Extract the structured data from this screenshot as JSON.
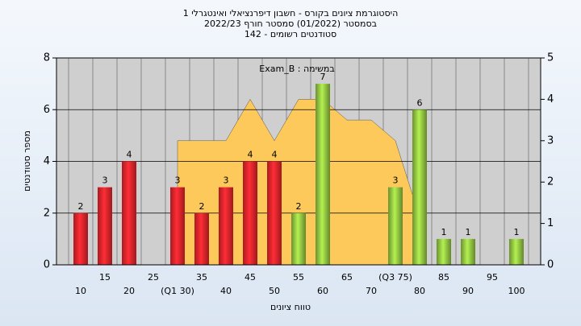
{
  "chart_data": {
    "type": "bar",
    "title": [
      "היסטוגרמת ציונים בקורס - חשבון דיפרנציאלי ואינטגרלי 1",
      "בסמסטר  (01/2022)  סמסטר חורף 2022/23",
      "סטודנטים רשומים - 142"
    ],
    "annotation": "Exam_B : במשימה",
    "x_label": "טווח ציונים",
    "y_label": "מספר סטודנטים",
    "categories": [
      "10",
      "15",
      "20",
      "25",
      "(Q1 30)",
      "35",
      "40",
      "45",
      "50",
      "55",
      "60",
      "65",
      "70",
      "(Q3 75)",
      "80",
      "85",
      "90",
      "95",
      "100"
    ],
    "values": [
      2,
      3,
      4,
      0,
      3,
      2,
      3,
      4,
      4,
      2,
      7,
      0,
      0,
      3,
      6,
      1,
      1,
      0,
      1
    ],
    "colors": [
      "#e3242b",
      "#e3242b",
      "#e3242b",
      "#e3242b",
      "#e3242b",
      "#e3242b",
      "#e3242b",
      "#e3242b",
      "#e3242b",
      "#8fc140",
      "#8fc140",
      "#8fc140",
      "#8fc140",
      "#8fc140",
      "#8fc140",
      "#8fc140",
      "#8fc140",
      "#8fc140",
      "#8fc140"
    ],
    "area": {
      "values": [
        null,
        null,
        null,
        null,
        3,
        3,
        3,
        4,
        3,
        4,
        4,
        3.5,
        3.5,
        3,
        1.15,
        null,
        null,
        null,
        null
      ],
      "color": "#fdc95a",
      "axis": "y2"
    },
    "ylim": [
      0,
      8
    ],
    "yticks": [
      0,
      2,
      4,
      6,
      8
    ],
    "y2lim": [
      0,
      5
    ],
    "y2ticks": [
      0,
      1,
      2,
      3,
      4,
      5
    ],
    "grid": true
  }
}
